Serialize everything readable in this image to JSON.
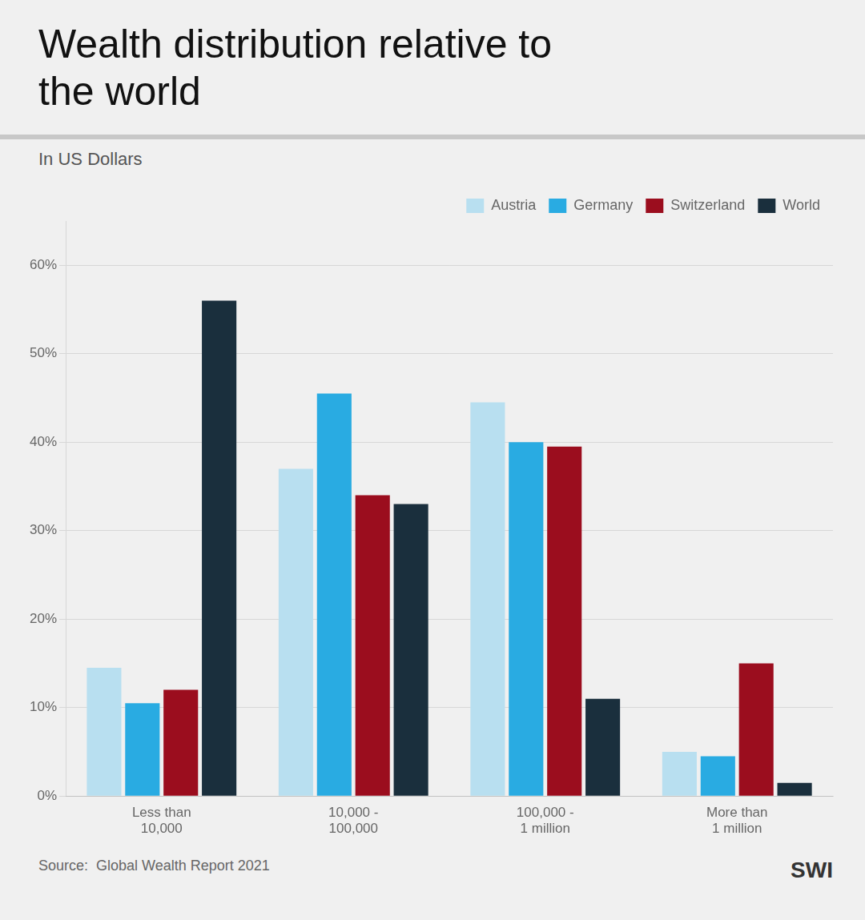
{
  "chart_data": {
    "type": "bar",
    "title": "Wealth distribution relative to\nthe world",
    "subtitle": "In US Dollars",
    "annotations": [
      "Source:  Global Wealth Report 2021",
      "SWI"
    ],
    "categories": [
      "Less than\n10,000",
      "10,000 -\n100,000",
      "100,000 -\n1 million",
      "More than\n1 million"
    ],
    "series": [
      {
        "name": "Austria",
        "color": "#b8dff0",
        "values": [
          14.5,
          37.0,
          44.5,
          5.0
        ]
      },
      {
        "name": "Germany",
        "color": "#29abe2",
        "values": [
          10.5,
          45.5,
          40.0,
          4.5
        ]
      },
      {
        "name": "Switzerland",
        "color": "#9b0d1e",
        "values": [
          12.0,
          34.0,
          39.5,
          15.0
        ]
      },
      {
        "name": "World",
        "color": "#1a2f3d",
        "values": [
          56.0,
          33.0,
          11.0,
          1.5
        ]
      }
    ],
    "ylim": [
      0,
      65
    ],
    "yticks": [
      {
        "value": 0,
        "label": "0%"
      },
      {
        "value": 10,
        "label": "10%"
      },
      {
        "value": 20,
        "label": "20%"
      },
      {
        "value": 30,
        "label": "30%"
      },
      {
        "value": 40,
        "label": "40%"
      },
      {
        "value": 50,
        "label": "50%"
      },
      {
        "value": 60,
        "label": "60%"
      }
    ],
    "grid": true,
    "legend": "upper right"
  }
}
